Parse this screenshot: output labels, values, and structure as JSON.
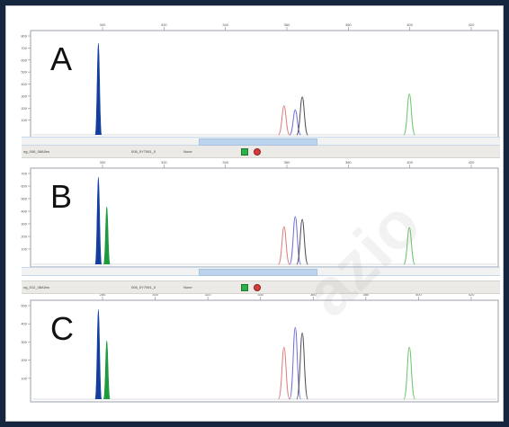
{
  "panels": [
    {
      "label": "A",
      "x_ticks": [
        "300",
        "320",
        "340",
        "360",
        "380",
        "400",
        "420"
      ],
      "y_ticks": [
        "800",
        "700",
        "600",
        "500",
        "400",
        "300",
        "200",
        "100"
      ],
      "peaks": [
        {
          "color": "#123f9e",
          "fill": true,
          "x": 0.145,
          "height": 0.92,
          "width": 0.007
        },
        {
          "color": "#e07b7b",
          "fill": false,
          "x": 0.542,
          "height": 0.29,
          "width": 0.012
        },
        {
          "color": "#6b6fd8",
          "fill": false,
          "x": 0.566,
          "height": 0.25,
          "width": 0.012
        },
        {
          "color": "#4b4b5a",
          "fill": false,
          "x": 0.581,
          "height": 0.38,
          "width": 0.012
        },
        {
          "color": "#69c36c",
          "fill": false,
          "x": 0.81,
          "height": 0.41,
          "width": 0.012
        }
      ]
    },
    {
      "label": "B",
      "x_ticks": [
        "300",
        "320",
        "340",
        "360",
        "380",
        "400",
        "420"
      ],
      "y_ticks": [
        "700",
        "600",
        "500",
        "400",
        "300",
        "200",
        "100"
      ],
      "peaks": [
        {
          "color": "#123f9e",
          "fill": true,
          "x": 0.145,
          "height": 0.95,
          "width": 0.007
        },
        {
          "color": "#1c9a3c",
          "fill": true,
          "x": 0.163,
          "height": 0.63,
          "width": 0.007
        },
        {
          "color": "#e07b7b",
          "fill": false,
          "x": 0.542,
          "height": 0.41,
          "width": 0.012
        },
        {
          "color": "#6b6fd8",
          "fill": false,
          "x": 0.566,
          "height": 0.52,
          "width": 0.012
        },
        {
          "color": "#4b4b5a",
          "fill": false,
          "x": 0.581,
          "height": 0.49,
          "width": 0.012
        },
        {
          "color": "#69c36c",
          "fill": false,
          "x": 0.81,
          "height": 0.4,
          "width": 0.012
        }
      ]
    },
    {
      "label": "C",
      "x_ticks": [
        "280",
        "300",
        "320",
        "340",
        "360",
        "380",
        "400",
        "420"
      ],
      "y_ticks": [
        "500",
        "400",
        "300",
        "200",
        "100"
      ],
      "peaks": [
        {
          "color": "#123f9e",
          "fill": true,
          "x": 0.145,
          "height": 0.95,
          "width": 0.007
        },
        {
          "color": "#1c9a3c",
          "fill": true,
          "x": 0.163,
          "height": 0.62,
          "width": 0.007
        },
        {
          "color": "#e07b7b",
          "fill": false,
          "x": 0.542,
          "height": 0.55,
          "width": 0.012
        },
        {
          "color": "#6b6fd8",
          "fill": false,
          "x": 0.566,
          "height": 0.76,
          "width": 0.012
        },
        {
          "color": "#4b4b5a",
          "fill": false,
          "x": 0.581,
          "height": 0.7,
          "width": 0.012
        },
        {
          "color": "#69c36c",
          "fill": false,
          "x": 0.81,
          "height": 0.55,
          "width": 0.012
        }
      ]
    }
  ],
  "status_bars": [
    {
      "sample": "ng_006_08A0ns",
      "file": "006_0Y7061_0",
      "none": "None"
    },
    {
      "sample": "ng_012_08A0ns",
      "file": "006_0Y7061_0",
      "none": "None"
    }
  ],
  "scroll_thumbs": [
    0.37,
    0.37
  ]
}
